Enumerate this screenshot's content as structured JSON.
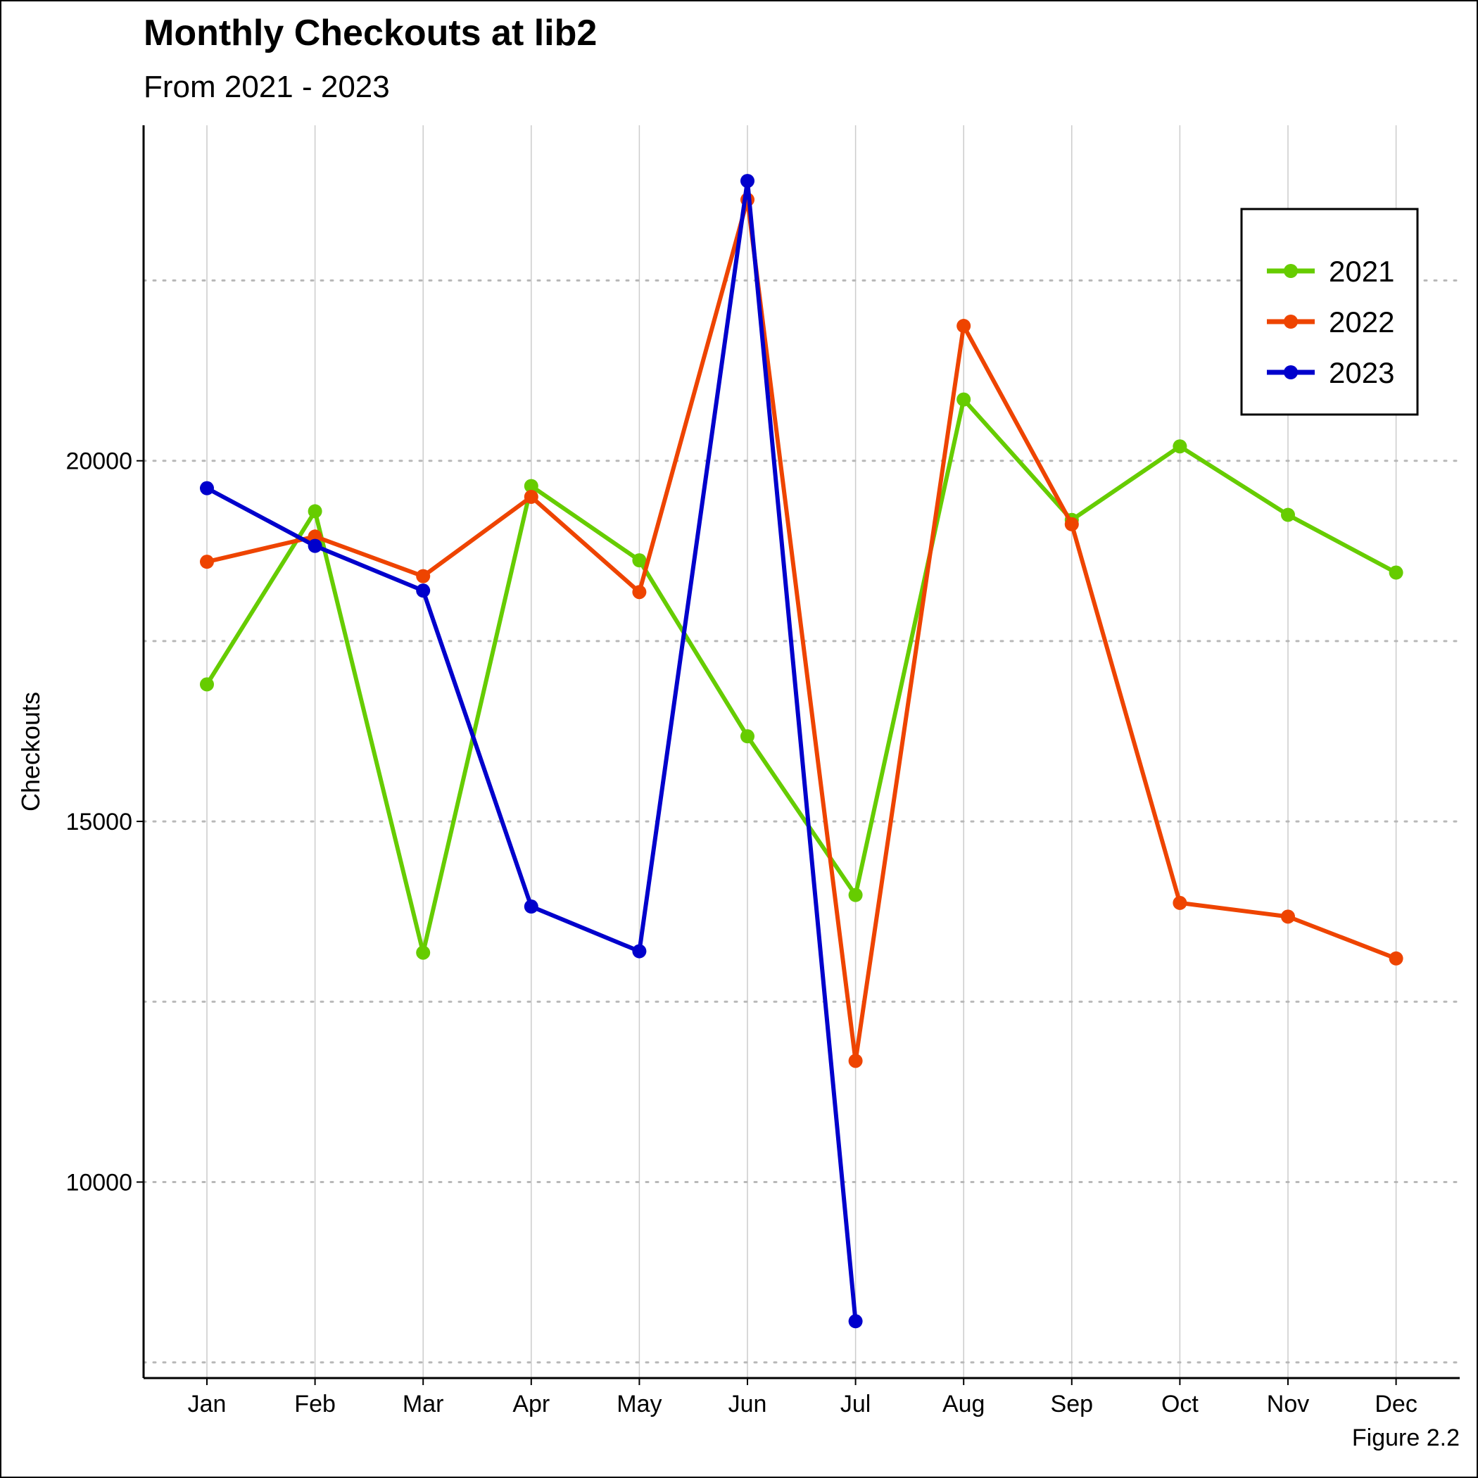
{
  "chart_data": {
    "type": "line",
    "title": "Monthly Checkouts at lib2",
    "subtitle": "From 2021 - 2023",
    "xlabel": "",
    "ylabel": "Checkouts",
    "caption": "Figure 2.2",
    "categories": [
      "Jan",
      "Feb",
      "Mar",
      "Apr",
      "May",
      "Jun",
      "Jul",
      "Aug",
      "Sep",
      "Oct",
      "Nov",
      "Dec"
    ],
    "ylim": [
      7300,
      24700
    ],
    "yticks": [
      10000,
      15000,
      20000
    ],
    "ygrid_minor": [
      7500,
      12500,
      17500,
      22500
    ],
    "xgrid": true,
    "ygrid": "dotted",
    "legend_position": "top-right",
    "series": [
      {
        "name": "2021",
        "color": "#66CC00",
        "values": [
          16900,
          19300,
          13180,
          19650,
          18620,
          16180,
          13980,
          20850,
          19180,
          20200,
          19250,
          18450
        ]
      },
      {
        "name": "2022",
        "color": "#EE4400",
        "values": [
          18600,
          18950,
          18400,
          19500,
          18180,
          23620,
          11680,
          21870,
          19120,
          13870,
          13680,
          13100
        ]
      },
      {
        "name": "2023",
        "color": "#0000CC",
        "values": [
          19620,
          18820,
          18200,
          13820,
          13200,
          23880,
          8070,
          null,
          null,
          null,
          null,
          null
        ]
      }
    ]
  }
}
